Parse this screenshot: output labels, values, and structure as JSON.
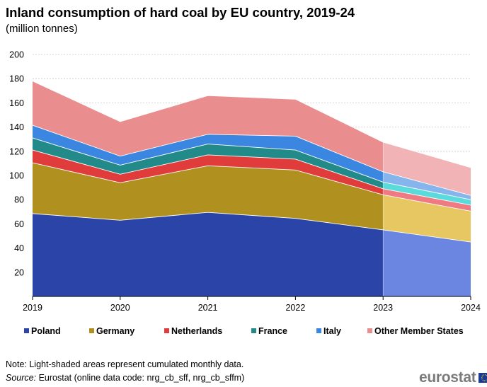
{
  "title": "Inland consumption of hard coal by EU country, 2019-24",
  "subtitle": "(million tonnes)",
  "note": "Note: Light-shaded areas represent cumulated monthly  data.",
  "source_prefix": "Source:",
  "source_text": " Eurostat (online data code: nrg_cb_sff, nrg_cb_sffm)",
  "logo_text": "eurostat",
  "chart_data": {
    "type": "area",
    "stacked": true,
    "x": [
      "2019",
      "2020",
      "2021",
      "2022",
      "2023",
      "2024"
    ],
    "ylim": [
      0,
      200
    ],
    "yticks": [
      20,
      40,
      60,
      80,
      100,
      120,
      140,
      160,
      180,
      200
    ],
    "grid": true,
    "legend_position": "bottom",
    "shaded_from": "2023",
    "series": [
      {
        "name": "Poland",
        "values": [
          68.5,
          63,
          69.5,
          64.5,
          55,
          45
        ],
        "color": "#2a44a8",
        "light_color": "#6b86e0"
      },
      {
        "name": "Germany",
        "values": [
          42,
          31,
          38.5,
          40,
          29,
          25.5
        ],
        "color": "#b09120",
        "light_color": "#e6c761"
      },
      {
        "name": "Netherlands",
        "values": [
          10.5,
          7,
          9,
          9,
          5,
          5
        ],
        "color": "#e03c3c",
        "light_color": "#ef7a82"
      },
      {
        "name": "France",
        "values": [
          10,
          7.5,
          9,
          7.5,
          5.5,
          4.5
        ],
        "color": "#238a8a",
        "light_color": "#5adada"
      },
      {
        "name": "Italy",
        "values": [
          10.5,
          7.5,
          8,
          11.5,
          8.5,
          3.5
        ],
        "color": "#3b86e0",
        "light_color": "#86b4ec"
      },
      {
        "name": "Other Member States",
        "values": [
          36.5,
          28.5,
          32,
          30.5,
          24.5,
          23
        ],
        "color": "#ea8d8f",
        "light_color": "#f2b3b6"
      }
    ]
  }
}
